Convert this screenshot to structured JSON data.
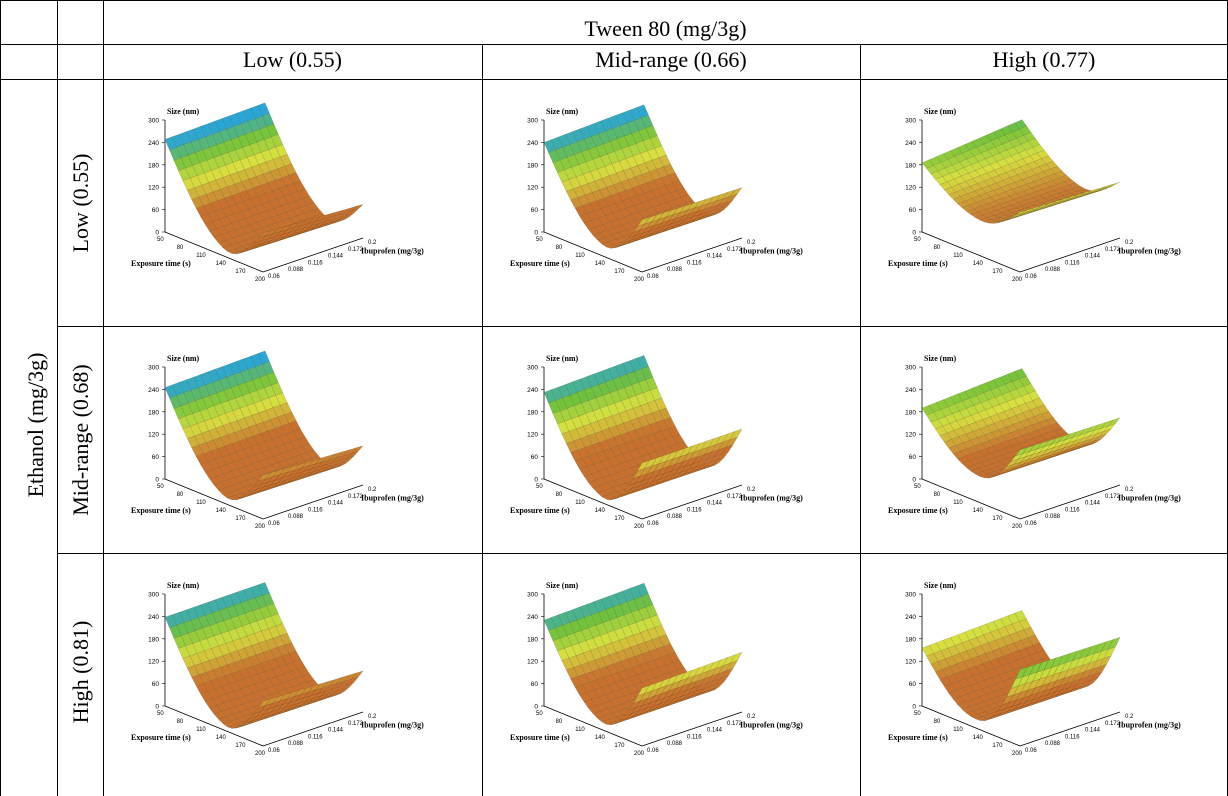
{
  "header": {
    "column_factor": "Tween 80 (mg/3g)",
    "row_factor": "Ethanol (mg/3g)",
    "columns": [
      "Low (0.55)",
      "Mid-range (0.66)",
      "High (0.77)"
    ],
    "rows": [
      "Low (0.55)",
      "Mid-range (0.68)",
      "High (0.81)"
    ]
  },
  "chart_data": {
    "type": "surface-grid",
    "z_axis": {
      "label": "Size (nm)",
      "ticks": [
        "300",
        "240",
        "180",
        "120",
        "60",
        "0"
      ],
      "range": [
        0,
        300
      ]
    },
    "x_axis": {
      "label": "Exposure time (s)",
      "ticks": [
        "50",
        "80",
        "110",
        "140",
        "170",
        "200"
      ],
      "range": [
        50,
        200
      ]
    },
    "y_axis": {
      "label": "Ibuprofen (mg/3g)",
      "ticks": [
        "0.06",
        "0.088",
        "0.116",
        "0.144",
        "0.172",
        "0.2"
      ],
      "range": [
        0.06,
        0.2
      ]
    },
    "colors": {
      "high": "#2aa6d6",
      "mid": "#72c23a",
      "upper_mid": "#d8e040",
      "low": "#c8702e"
    },
    "panels": [
      {
        "row": "Low (0.55)",
        "col": "Low (0.55)",
        "corners_nm": {
          "t50_i006": 255,
          "t50_i02": 248,
          "t200_i006": 90,
          "t200_i02": 105
        },
        "min_nm": 20
      },
      {
        "row": "Low (0.55)",
        "col": "Mid-range (0.66)",
        "corners_nm": {
          "t50_i006": 250,
          "t50_i02": 240,
          "t200_i006": 135,
          "t200_i02": 140
        },
        "min_nm": 30
      },
      {
        "row": "Low (0.55)",
        "col": "High (0.77)",
        "corners_nm": {
          "t50_i006": 210,
          "t50_i02": 185,
          "t200_i006": 150,
          "t200_i02": 160
        },
        "min_nm": 95
      },
      {
        "row": "Mid-range (0.68)",
        "col": "Low (0.55)",
        "corners_nm": {
          "t50_i006": 252,
          "t50_i02": 245,
          "t200_i006": 105,
          "t200_i02": 118
        },
        "min_nm": 20
      },
      {
        "row": "Mid-range (0.68)",
        "col": "Mid-range (0.66)",
        "corners_nm": {
          "t50_i006": 240,
          "t50_i02": 232,
          "t200_i006": 150,
          "t200_i02": 150
        },
        "min_nm": 15
      },
      {
        "row": "Mid-range (0.68)",
        "col": "High (0.77)",
        "corners_nm": {
          "t50_i006": 205,
          "t50_i02": 190,
          "t200_i006": 180,
          "t200_i02": 185
        },
        "min_nm": 70
      },
      {
        "row": "High (0.81)",
        "col": "Low (0.55)",
        "corners_nm": {
          "t50_i006": 240,
          "t50_i02": 238,
          "t200_i006": 110,
          "t200_i02": 120
        },
        "min_nm": 15
      },
      {
        "row": "High (0.81)",
        "col": "Mid-range (0.66)",
        "corners_nm": {
          "t50_i006": 238,
          "t50_i02": 230,
          "t200_i006": 160,
          "t200_i02": 155
        },
        "min_nm": 20
      },
      {
        "row": "High (0.81)",
        "col": "High (0.77)",
        "corners_nm": {
          "t50_i006": 165,
          "t50_i02": 155,
          "t200_i006": 200,
          "t200_i02": 205
        },
        "min_nm": 25
      }
    ]
  }
}
